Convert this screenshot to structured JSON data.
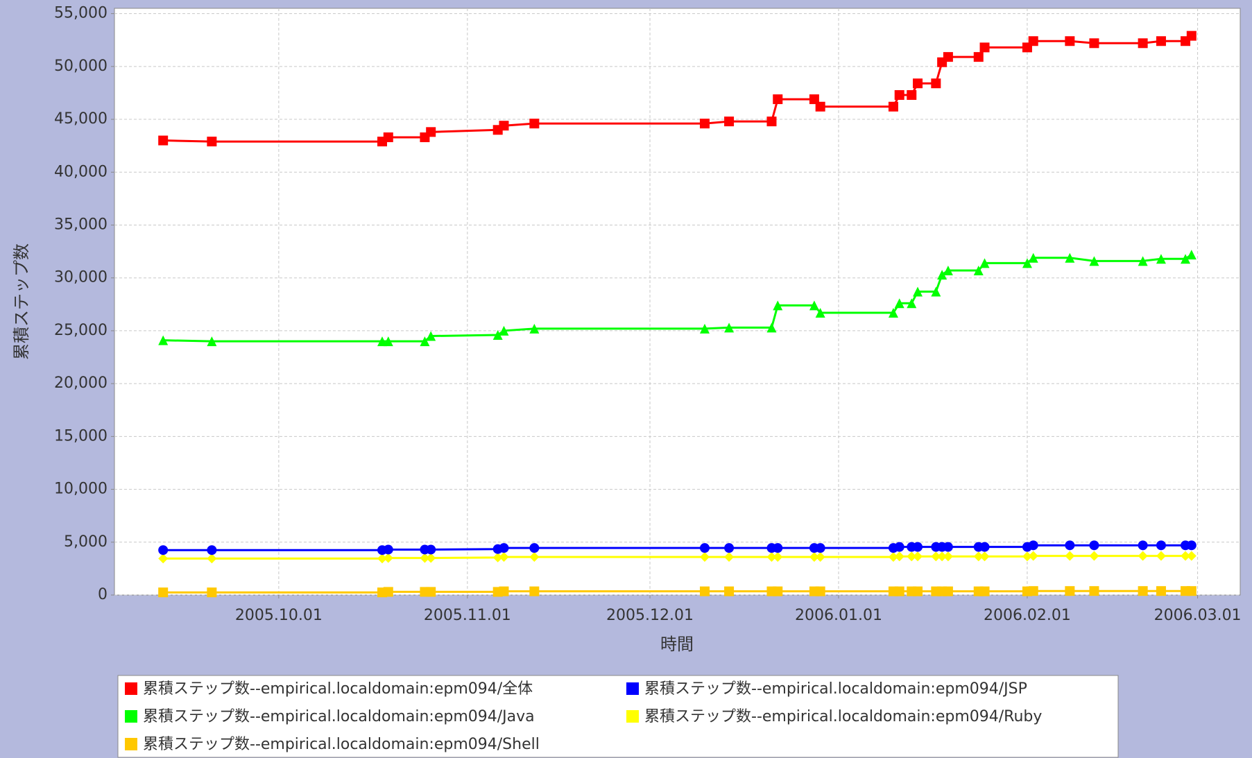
{
  "chart_data": {
    "type": "line",
    "y_label": "累積ステップ数",
    "x_label": "時間",
    "x": [
      "2005.09.12",
      "2005.09.20",
      "2005.10.18",
      "2005.10.19",
      "2005.10.25",
      "2005.10.26",
      "2005.11.06",
      "2005.11.07",
      "2005.11.12",
      "2005.12.10",
      "2005.12.14",
      "2005.12.21",
      "2005.12.22",
      "2005.12.28",
      "2005.12.29",
      "2006.01.10",
      "2006.01.11",
      "2006.01.13",
      "2006.01.14",
      "2006.01.17",
      "2006.01.18",
      "2006.01.19",
      "2006.01.24",
      "2006.01.25",
      "2006.02.01",
      "2006.02.02",
      "2006.02.08",
      "2006.02.12",
      "2006.02.20",
      "2006.02.23",
      "2006.02.27",
      "2006.02.28"
    ],
    "xlim": [
      "2005.09.04",
      "2006.03.08"
    ],
    "xticks": [
      "2005.10.01",
      "2005.11.01",
      "2005.12.01",
      "2006.01.01",
      "2006.02.01",
      "2006.03.01"
    ],
    "ylim": [
      0,
      55500
    ],
    "yticks": [
      0,
      {
        "value": 5000,
        "label": "5,000"
      },
      {
        "value": 10000,
        "label": "10,000"
      },
      {
        "value": 15000,
        "label": "15,000"
      },
      {
        "value": 20000,
        "label": "20,000"
      },
      {
        "value": 25000,
        "label": "25,000"
      },
      {
        "value": 30000,
        "label": "30,000"
      },
      {
        "value": 35000,
        "label": "35,000"
      },
      {
        "value": 40000,
        "label": "40,000"
      },
      {
        "value": 45000,
        "label": "45,000"
      },
      {
        "value": 50000,
        "label": "50,000"
      },
      {
        "value": 55000,
        "label": "55,000"
      }
    ],
    "grid": true,
    "legend": "bottom",
    "series": [
      {
        "name": "累積ステップ数--empirical.localdomain:epm094/全体",
        "color": "#ff0000",
        "marker": "square",
        "values": [
          43000,
          42900,
          42900,
          43300,
          43300,
          43800,
          44000,
          44400,
          44600,
          44600,
          44800,
          44800,
          46900,
          46900,
          46200,
          46200,
          47300,
          47300,
          48400,
          48400,
          50400,
          50900,
          50900,
          51800,
          51800,
          52400,
          52400,
          52200,
          52200,
          52400,
          52400,
          52900
        ]
      },
      {
        "name": "累積ステップ数--empirical.localdomain:epm094/JSP",
        "color": "#0000ff",
        "marker": "circle",
        "values": [
          4250,
          4250,
          4250,
          4300,
          4300,
          4300,
          4350,
          4450,
          4450,
          4450,
          4450,
          4450,
          4450,
          4450,
          4450,
          4450,
          4550,
          4550,
          4550,
          4550,
          4550,
          4550,
          4550,
          4550,
          4550,
          4700,
          4700,
          4700,
          4700,
          4700,
          4700,
          4700
        ]
      },
      {
        "name": "累積ステップ数--empirical.localdomain:epm094/Java",
        "color": "#00ff00",
        "marker": "triangle",
        "values": [
          24100,
          24000,
          24000,
          24000,
          24000,
          24500,
          24600,
          25000,
          25200,
          25200,
          25300,
          25300,
          27400,
          27400,
          26700,
          26700,
          27600,
          27600,
          28700,
          28700,
          30300,
          30700,
          30700,
          31400,
          31400,
          31900,
          31900,
          31600,
          31600,
          31800,
          31800,
          32200
        ]
      },
      {
        "name": "累積ステップ数--empirical.localdomain:epm094/Ruby",
        "color": "#ffff00",
        "marker": "diamond",
        "values": [
          3450,
          3450,
          3450,
          3500,
          3500,
          3500,
          3550,
          3600,
          3600,
          3600,
          3600,
          3600,
          3600,
          3600,
          3600,
          3600,
          3650,
          3650,
          3650,
          3650,
          3650,
          3650,
          3650,
          3650,
          3650,
          3700,
          3700,
          3700,
          3700,
          3700,
          3700,
          3700
        ]
      },
      {
        "name": "累積ステップ数--empirical.localdomain:epm094/Shell",
        "color": "#ffc800",
        "marker": "square",
        "values": [
          250,
          250,
          250,
          300,
          300,
          300,
          300,
          350,
          350,
          350,
          350,
          350,
          350,
          350,
          350,
          350,
          350,
          350,
          350,
          350,
          350,
          350,
          350,
          350,
          350,
          380,
          380,
          380,
          380,
          380,
          380,
          380
        ]
      }
    ]
  }
}
